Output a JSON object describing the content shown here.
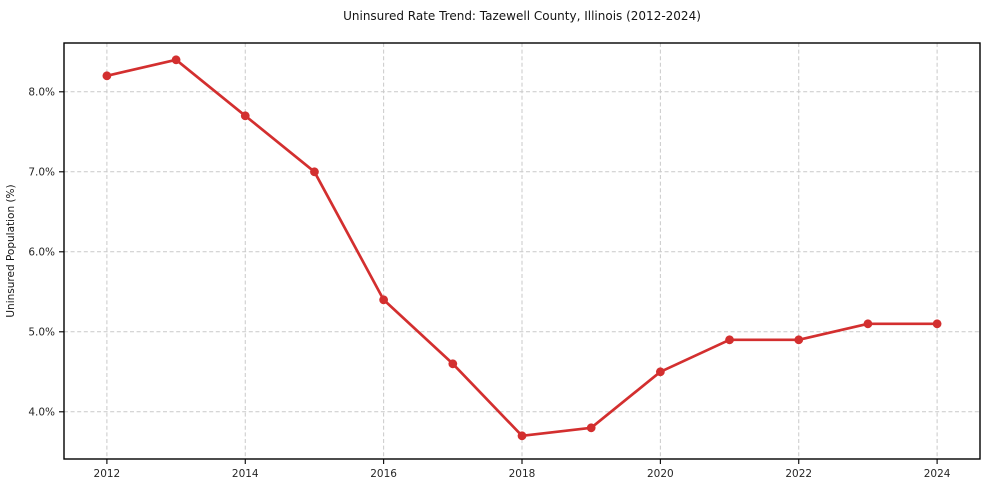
{
  "chart_data": {
    "type": "line",
    "title": "Uninsured Rate Trend: Tazewell County, Illinois (2012-2024)",
    "xlabel": "",
    "ylabel": "Uninsured Population (%)",
    "x": [
      2012,
      2013,
      2014,
      2015,
      2016,
      2017,
      2018,
      2019,
      2020,
      2021,
      2022,
      2023,
      2024
    ],
    "values": [
      8.2,
      8.4,
      7.7,
      7.0,
      5.4,
      4.6,
      3.7,
      3.8,
      4.5,
      4.9,
      4.9,
      5.1,
      5.1
    ],
    "x_ticks": {
      "values": [
        2012,
        2014,
        2016,
        2018,
        2020,
        2022,
        2024
      ],
      "labels": [
        "2012",
        "2014",
        "2016",
        "2018",
        "2020",
        "2022",
        "2024"
      ]
    },
    "y_ticks": {
      "values": [
        4.0,
        5.0,
        6.0,
        7.0,
        8.0
      ],
      "labels": [
        "4.0%",
        "5.0%",
        "6.0%",
        "7.0%",
        "8.0%"
      ]
    },
    "xlim": [
      2011.38,
      2024.62
    ],
    "ylim": [
      3.41,
      8.61
    ],
    "grid": true,
    "grid_style": "dashed",
    "legend": false,
    "marker": "circle",
    "colors": {
      "line": "#d32f2f",
      "grid": "#c9c9c9",
      "axis": "#000000",
      "text": "#262626",
      "background": "#ffffff"
    }
  }
}
